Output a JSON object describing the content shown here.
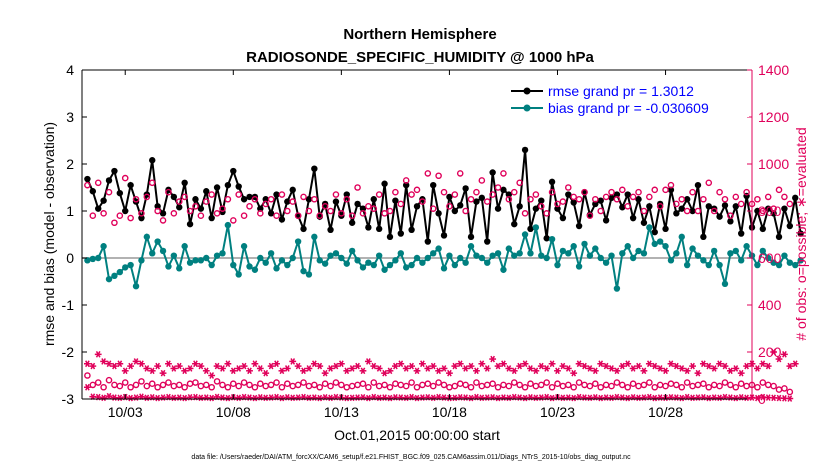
{
  "chart_data": {
    "type": "line",
    "title": "Northern Hemisphere",
    "subtitle": "RADIOSONDE_SPECIFIC_HUMIDITY @ 1000 hPa",
    "xlabel": "Oct.01,2015 00:00:00 start",
    "ylabel_left": "rmse and bias (model - observation)",
    "ylabel_right": "# of obs: o=possible; ∗=evaluated",
    "footnote": "data file: /Users/raeder/DAI/ATM_forcXX/CAM6_setup/f.e21.FHIST_BGC.f09_025.CAM6assim.011/Diags_NTrS_2015-10/obs_diag_output.nc",
    "xlim": [
      1,
      32
    ],
    "ylim_left": [
      -3,
      4
    ],
    "ylim_right": [
      0,
      1400
    ],
    "x_ticks": [
      3,
      8,
      13,
      18,
      23,
      28
    ],
    "x_tick_labels": [
      "10/03",
      "10/08",
      "10/13",
      "10/18",
      "10/23",
      "10/28"
    ],
    "y_left_ticks": [
      -3,
      -2,
      -1,
      0,
      1,
      2,
      3,
      4
    ],
    "y_right_ticks": [
      0,
      200,
      400,
      600,
      800,
      1000,
      1200,
      1400
    ],
    "legend": [
      {
        "label": "rmse grand pr = 1.3012",
        "color": "#000000"
      },
      {
        "label": "bias grand pr = -0.030609",
        "color": "#008080"
      }
    ],
    "colors": {
      "rmse": "#000000",
      "bias": "#008080",
      "obs": "#e0005a",
      "zero_line": "#999999"
    },
    "x_start": 1.25,
    "x_step": 0.25,
    "series": [
      {
        "name": "rmse",
        "axis": "left",
        "values": [
          1.68,
          1.42,
          1.05,
          1.22,
          1.65,
          1.85,
          1.38,
          1.0,
          1.55,
          1.2,
          0.85,
          1.35,
          2.08,
          1.1,
          0.95,
          1.45,
          1.3,
          1.08,
          1.6,
          0.72,
          1.25,
          1.05,
          1.42,
          0.85,
          1.5,
          0.98,
          1.55,
          1.85,
          1.52,
          1.25,
          1.3,
          1.3,
          1.05,
          1.25,
          0.95,
          1.35,
          0.82,
          1.2,
          1.45,
          0.9,
          0.62,
          1.25,
          1.9,
          0.88,
          1.15,
          0.6,
          1.2,
          0.9,
          1.35,
          0.75,
          1.15,
          1.05,
          0.65,
          1.25,
          0.62,
          1.58,
          0.45,
          1.22,
          0.52,
          1.55,
          0.6,
          1.1,
          1.25,
          0.35,
          1.55,
          0.95,
          0.48,
          1.3,
          1.0,
          1.12,
          1.48,
          0.45,
          1.2,
          1.28,
          0.35,
          1.82,
          1.05,
          1.45,
          1.35,
          0.72,
          1.1,
          2.3,
          0.62,
          1.05,
          1.22,
          0.42,
          1.62,
          1.05,
          0.85,
          1.35,
          1.18,
          0.68,
          1.4,
          0.92,
          1.15,
          1.22,
          0.8,
          1.28,
          1.35,
          1.08,
          1.35,
          0.85,
          1.25,
          0.75,
          1.1,
          0.55,
          1.15,
          0.62,
          1.45,
          0.95,
          1.05,
          1.25,
          1.0,
          1.55,
          0.45,
          1.1,
          1.05,
          0.88,
          1.12,
          0.78,
          1.1,
          0.52,
          1.32,
          0.65,
          1.0,
          0.62,
          1.05,
          0.95,
          0.45,
          1.05,
          0.68,
          1.28,
          0.52
        ]
      },
      {
        "name": "bias",
        "axis": "left",
        "values": [
          -0.05,
          -0.02,
          0.0,
          0.25,
          -0.45,
          -0.38,
          -0.3,
          -0.2,
          -0.15,
          -0.6,
          -0.05,
          0.45,
          0.1,
          0.35,
          0.15,
          -0.18,
          0.05,
          -0.22,
          0.25,
          -0.1,
          -0.05,
          -0.05,
          0.0,
          -0.15,
          0.05,
          0.1,
          0.7,
          -0.15,
          -0.35,
          0.25,
          -0.18,
          -0.25,
          0.0,
          -0.1,
          0.1,
          -0.22,
          -0.05,
          -0.15,
          0.0,
          0.35,
          -0.28,
          -0.35,
          0.45,
          -0.05,
          -0.12,
          0.05,
          0.1,
          0.0,
          -0.12,
          0.15,
          -0.05,
          -0.2,
          -0.1,
          -0.15,
          0.05,
          -0.25,
          -0.15,
          -0.05,
          0.1,
          -0.2,
          -0.15,
          0.0,
          -0.1,
          0.0,
          0.1,
          0.2,
          -0.22,
          0.05,
          -0.15,
          0.0,
          -0.1,
          0.25,
          0.05,
          0.0,
          -0.1,
          0.05,
          0.1,
          -0.25,
          0.2,
          0.05,
          0.1,
          0.5,
          0.1,
          0.65,
          0.05,
          0.0,
          0.4,
          -0.15,
          0.15,
          0.1,
          0.25,
          -0.18,
          0.3,
          0.05,
          0.2,
          0.0,
          -0.1,
          0.05,
          -0.65,
          0.1,
          0.25,
          0.0,
          0.15,
          0.1,
          0.65,
          0.3,
          0.35,
          0.25,
          -0.05,
          0.1,
          0.45,
          -0.15,
          0.2,
          0.05,
          -0.05,
          -0.15,
          0.15,
          -0.15,
          -0.55,
          0.1,
          0.15,
          -0.05,
          0.25,
          0.05,
          -0.15,
          0.15,
          0.0,
          -0.1,
          -0.15,
          0.05,
          -0.1,
          -0.15,
          -0.05
        ]
      },
      {
        "name": "obs possible",
        "axis": "right",
        "marker": "o",
        "values": [
          910,
          780,
          920,
          790,
          880,
          750,
          780,
          940,
          770,
          850,
          790,
          860,
          920,
          800,
          760,
          880,
          790,
          840,
          860,
          800,
          820,
          780,
          840,
          870,
          790,
          810,
          850,
          760,
          870,
          780,
          820,
          850,
          790,
          830,
          850,
          780,
          870,
          800,
          840,
          780,
          860,
          800,
          850,
          780,
          820,
          800,
          870,
          790,
          850,
          780,
          900,
          790,
          820,
          810,
          870,
          790,
          800,
          880,
          830,
          930,
          870,
          890,
          840,
          960,
          810,
          950,
          880,
          820,
          870,
          960,
          800,
          850,
          880,
          930,
          840,
          870,
          900,
          960,
          850,
          880,
          920,
          790,
          850,
          870,
          820,
          790,
          880,
          830,
          840,
          900,
          860,
          850,
          880,
          780,
          850,
          800,
          860,
          880,
          850,
          890,
          820,
          860,
          880,
          800,
          860,
          890,
          820,
          890,
          910,
          830,
          850,
          800,
          880,
          800,
          850,
          920,
          800,
          880,
          850,
          780,
          860,
          830,
          880,
          830,
          850,
          800,
          860,
          810,
          890,
          860,
          830
        ]
      },
      {
        "name": "obs evaluated",
        "axis": "right",
        "marker": "*",
        "values": [
          150,
          140,
          190,
          160,
          150,
          140,
          150,
          120,
          140,
          160,
          150,
          130,
          120,
          140,
          110,
          150,
          130,
          140,
          120,
          130,
          150,
          140,
          120,
          100,
          140,
          130,
          150,
          120,
          130,
          140,
          120,
          150,
          130,
          110,
          140,
          150,
          120,
          130,
          160,
          140,
          120,
          130,
          150,
          140,
          110,
          130,
          140,
          150,
          120,
          130,
          140,
          120,
          160,
          140,
          130,
          110,
          120,
          140,
          150,
          130,
          140,
          120,
          150,
          130,
          140,
          120,
          130,
          110,
          140,
          150,
          130,
          140,
          120,
          150,
          130,
          170,
          140,
          150,
          130,
          120,
          140,
          150,
          130,
          120,
          140,
          130,
          150,
          120,
          140,
          130,
          110,
          150,
          140,
          130,
          120,
          150,
          140,
          130,
          120,
          140,
          150,
          130,
          140,
          120,
          150,
          140,
          130,
          120,
          150,
          140,
          130,
          120,
          140,
          110,
          150,
          140,
          130,
          150,
          140,
          120,
          130,
          110,
          140,
          150,
          130,
          150,
          140,
          200,
          170,
          190,
          140,
          150
        ]
      },
      {
        "name": "obs possible (lower)",
        "axis": "right",
        "marker": "o",
        "values": [
          100,
          60,
          70,
          50,
          80,
          60,
          55,
          70,
          50,
          60,
          75,
          55,
          65,
          50,
          60,
          70,
          55,
          60,
          50,
          65,
          70,
          55,
          60,
          50,
          75,
          60,
          50,
          65,
          55,
          70,
          60,
          50,
          65,
          55,
          60,
          70,
          50,
          65,
          55,
          60,
          70,
          55,
          60,
          50,
          65,
          55,
          70,
          60,
          50,
          55,
          60,
          65,
          50,
          70,
          55,
          60,
          50,
          65,
          60,
          55,
          70,
          50,
          60,
          65,
          55,
          70,
          60,
          50,
          55,
          65,
          60,
          50,
          70,
          55,
          60,
          65,
          50,
          60,
          55,
          70,
          60,
          50,
          65,
          55,
          60,
          70,
          50,
          65,
          55,
          60,
          50,
          70,
          60,
          55,
          65,
          50,
          60,
          55,
          70,
          60,
          50,
          65,
          55,
          60,
          70,
          50,
          60,
          55,
          65,
          60,
          50,
          70,
          55,
          60,
          65,
          50,
          60,
          55,
          70,
          60,
          50,
          65,
          55,
          60,
          50,
          70,
          60,
          55,
          40,
          45,
          30
        ]
      },
      {
        "name": "obs evaluated (lower)",
        "axis": "right",
        "marker": "*",
        "values": [
          50,
          10,
          8,
          5,
          12,
          6,
          5,
          8,
          4,
          6,
          10,
          5,
          7,
          4,
          6,
          8,
          5,
          6,
          4,
          7,
          8,
          5,
          6,
          4,
          9,
          6,
          4,
          7,
          5,
          8,
          6,
          4,
          7,
          5,
          6,
          8,
          4,
          7,
          5,
          6,
          8,
          5,
          6,
          4,
          7,
          5,
          8,
          6,
          4,
          5,
          6,
          7,
          4,
          8,
          5,
          6,
          4,
          7,
          6,
          5,
          8,
          4,
          6,
          7,
          5,
          8,
          6,
          4,
          5,
          7,
          6,
          4,
          8,
          5,
          6,
          7,
          4,
          6,
          5,
          8,
          6,
          4,
          7,
          5,
          6,
          8,
          4,
          7,
          5,
          6,
          4,
          8,
          6,
          5,
          7,
          4,
          6,
          5,
          8,
          6,
          4,
          7,
          5,
          6,
          8,
          4,
          6,
          5,
          7,
          6,
          4,
          8,
          5,
          6,
          7,
          4,
          6,
          5,
          8,
          6,
          4,
          7,
          5,
          6,
          4,
          8,
          6,
          5,
          4,
          3,
          2
        ]
      }
    ]
  }
}
